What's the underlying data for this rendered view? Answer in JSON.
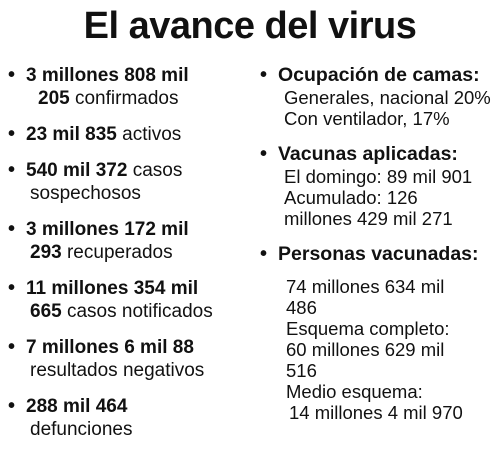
{
  "title": "El avance del virus",
  "bullet_glyph": "•",
  "left": {
    "confirmados": {
      "num1": "3 millones 808 mil",
      "num2": "205",
      "label": "confirmados"
    },
    "activos": {
      "num": "23 mil 835",
      "label": "activos"
    },
    "sospechosos": {
      "num": "540 mil 372",
      "label1": "casos",
      "label2": "sospechosos"
    },
    "recuperados": {
      "num1": "3 millones 172 mil",
      "num2": "293",
      "label": "recuperados"
    },
    "notificados": {
      "num1": "11 millones 354 mil",
      "num2": "665",
      "label": "casos notificados"
    },
    "negativos": {
      "num": "7 millones 6 mil 88",
      "label": "resultados negativos"
    },
    "defunciones": {
      "num": "288 mil 464",
      "label": "defunciones"
    }
  },
  "right": {
    "camas": {
      "heading": "Ocupación de camas:",
      "line1": "Generales, nacional 20%",
      "line2": "Con ventilador, 17%"
    },
    "vacunas": {
      "heading": "Vacunas aplicadas:",
      "line1": "El domingo: 89 mil 901",
      "line2": "Acumulado: 126",
      "line3": "millones 429 mil 271"
    },
    "personas": {
      "heading": "Personas vacunadas:",
      "line1": "74 millones 634 mil",
      "line2": "486",
      "line3": "Esquema completo:",
      "line4": "60 millones 629 mil",
      "line5": "516",
      "line6": "Medio esquema:",
      "line7": "14 millones 4 mil 970"
    }
  }
}
